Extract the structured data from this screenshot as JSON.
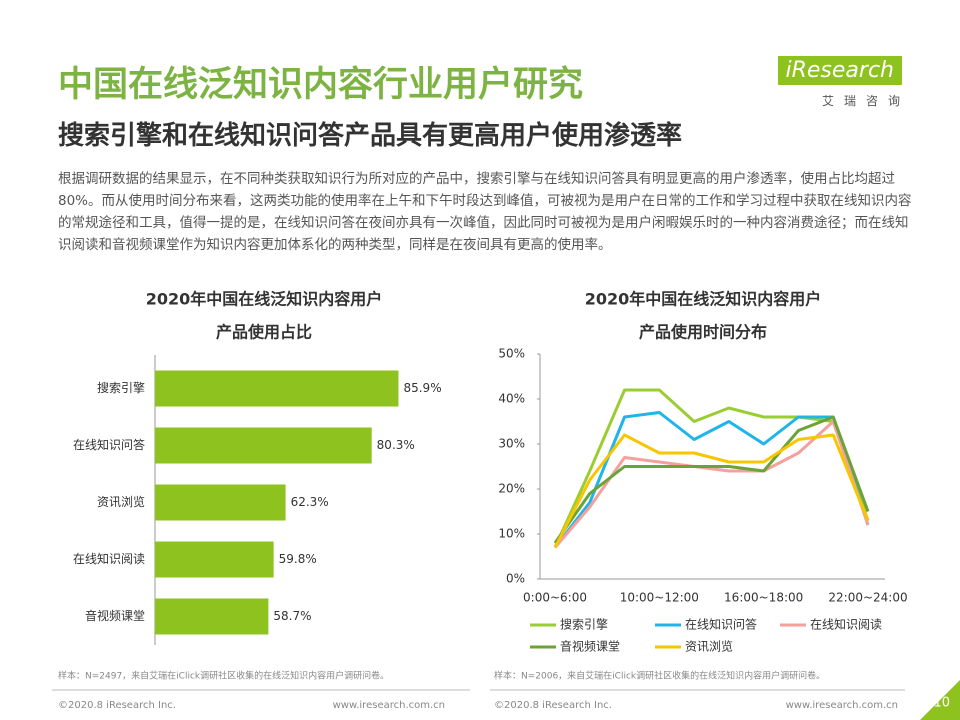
{
  "header": {
    "title": "中国在线泛知识内容行业用户研究",
    "subtitle": "搜索引擎和在线知识问答产品具有更高用户使用渗透率",
    "logo": "iResearch",
    "logo_caption": "艾瑞咨询"
  },
  "body": "根据调研数据的结果显示，在不同种类获取知识行为所对应的产品中，搜索引擎与在线知识问答具有明显更高的用户渗透率，使用占比均超过80%。而从使用时间分布来看，这两类功能的使用率在上午和下午时段达到峰值，可被视为是用户在日常的工作和学习过程中获取在线知识内容的常规途径和工具，值得一提的是，在线知识问答在夜间亦具有一次峰值，因此同时可被视为是用户闲暇娱乐时的一种内容消费途径；而在线知识阅读和音视频课堂作为知识内容更加体系化的两种类型，同样是在夜间具有更高的使用率。",
  "footer": {
    "notes": [
      "样本：N=2497，来自艾瑞在iClick调研社区收集的在线泛知识内容用户调研问卷。",
      "样本：N=2006，来自艾瑞在iClick调研社区收集的在线泛知识内容用户调研问卷。"
    ],
    "copyright": "©2020.8 iResearch Inc.",
    "website": "www.iresearch.com.cn",
    "page": "10"
  },
  "chart_data": [
    {
      "type": "hbar",
      "title": [
        "2020年中国在线泛知识内容用户",
        "产品使用占比"
      ],
      "categories": [
        "搜索引擎",
        "在线知识问答",
        "资讯浏览",
        "在线知识阅读",
        "音视频课堂"
      ],
      "values": [
        85.9,
        80.3,
        62.3,
        59.8,
        58.7
      ],
      "value_labels": [
        "85.9%",
        "80.3%",
        "62.3%",
        "59.8%",
        "58.7%"
      ],
      "color": "#8dc21f",
      "xlim": [
        35,
        95
      ]
    },
    {
      "type": "line",
      "title": [
        "2020年中国在线泛知识内容用户",
        "产品使用时间分布"
      ],
      "categories": [
        "0:00~6:00",
        null,
        null,
        "10:00~12:00",
        null,
        null,
        "16:00~18:00",
        null,
        null,
        "22:00~24:00"
      ],
      "ylim": [
        0,
        50
      ],
      "yticks": [
        {
          "value": 0,
          "label": "0%"
        },
        {
          "value": 10,
          "label": "10%"
        },
        {
          "value": 20,
          "label": "20%"
        },
        {
          "value": 30,
          "label": "30%"
        },
        {
          "value": 40,
          "label": "40%"
        },
        {
          "value": 50,
          "label": "50%"
        }
      ],
      "series": [
        {
          "name": "搜索引擎",
          "color": "#9acd32",
          "values": [
            7,
            24,
            42,
            42,
            35,
            38,
            36,
            36,
            35,
            13
          ]
        },
        {
          "name": "在线知识问答",
          "color": "#1fb5e8",
          "values": [
            7,
            17,
            36,
            37,
            31,
            35,
            30,
            36,
            36,
            12
          ]
        },
        {
          "name": "在线知识阅读",
          "color": "#f4a09c",
          "values": [
            7,
            16,
            27,
            26,
            25,
            24,
            24,
            28,
            35,
            12
          ]
        },
        {
          "name": "音视频课堂",
          "color": "#6aa336",
          "values": [
            8,
            19,
            25,
            25,
            25,
            25,
            24,
            33,
            36,
            15
          ]
        },
        {
          "name": "资讯浏览",
          "color": "#f7c600",
          "values": [
            7,
            22,
            32,
            28,
            28,
            26,
            26,
            31,
            32,
            13
          ]
        }
      ]
    }
  ]
}
